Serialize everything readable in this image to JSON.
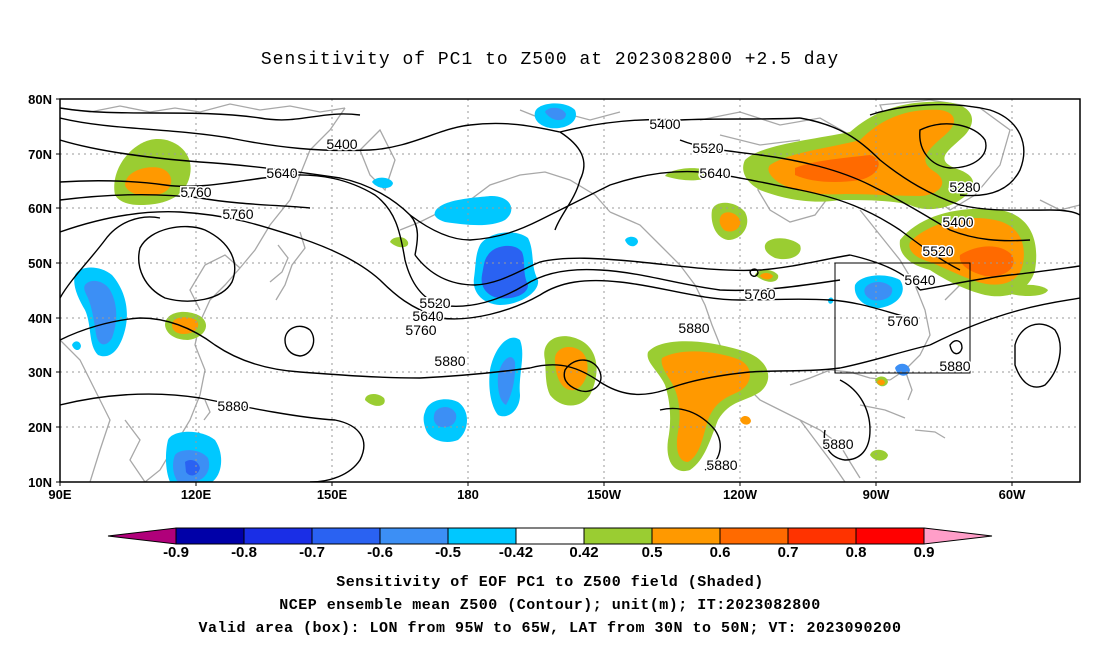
{
  "title": "Sensitivity of PC1 to Z500 at 2023082800 +2.5 day",
  "map": {
    "lat_labels": [
      "80N",
      "70N",
      "60N",
      "50N",
      "40N",
      "30N",
      "20N",
      "10N"
    ],
    "lon_labels": [
      "90E",
      "120E",
      "150E",
      "180",
      "150W",
      "120W",
      "90W",
      "60W"
    ],
    "contour_labels": [
      "5400",
      "5400",
      "5520",
      "5640",
      "5640",
      "5760",
      "5760",
      "5520",
      "5640",
      "5760",
      "5880",
      "5880",
      "5880",
      "5280",
      "5400",
      "5520",
      "5640",
      "5760",
      "5880",
      "5880",
      "5880",
      "5760"
    ]
  },
  "colorbar": {
    "tick_labels": [
      "-0.9",
      "-0.8",
      "-0.7",
      "-0.6",
      "-0.5",
      "-0.42",
      "0.42",
      "0.5",
      "0.6",
      "0.7",
      "0.8",
      "0.9"
    ],
    "colors": [
      "#8b008b",
      "#0000a8",
      "#1a2ee6",
      "#2a62f2",
      "#3c8ff5",
      "#00c8ff",
      "#ffffff",
      "#9acd32",
      "#ff9900",
      "#ff6a00",
      "#ff3300",
      "#ff0000",
      "#ff9ec8"
    ]
  },
  "footer": {
    "line1": "Sensitivity of EOF PC1 to Z500 field (Shaded)",
    "line2": "NCEP ensemble mean Z500 (Contour); unit(m); IT:2023082800",
    "line3": "Valid area (box): LON from 95W to 65W, LAT from 30N to 50N; VT: 2023090200"
  }
}
